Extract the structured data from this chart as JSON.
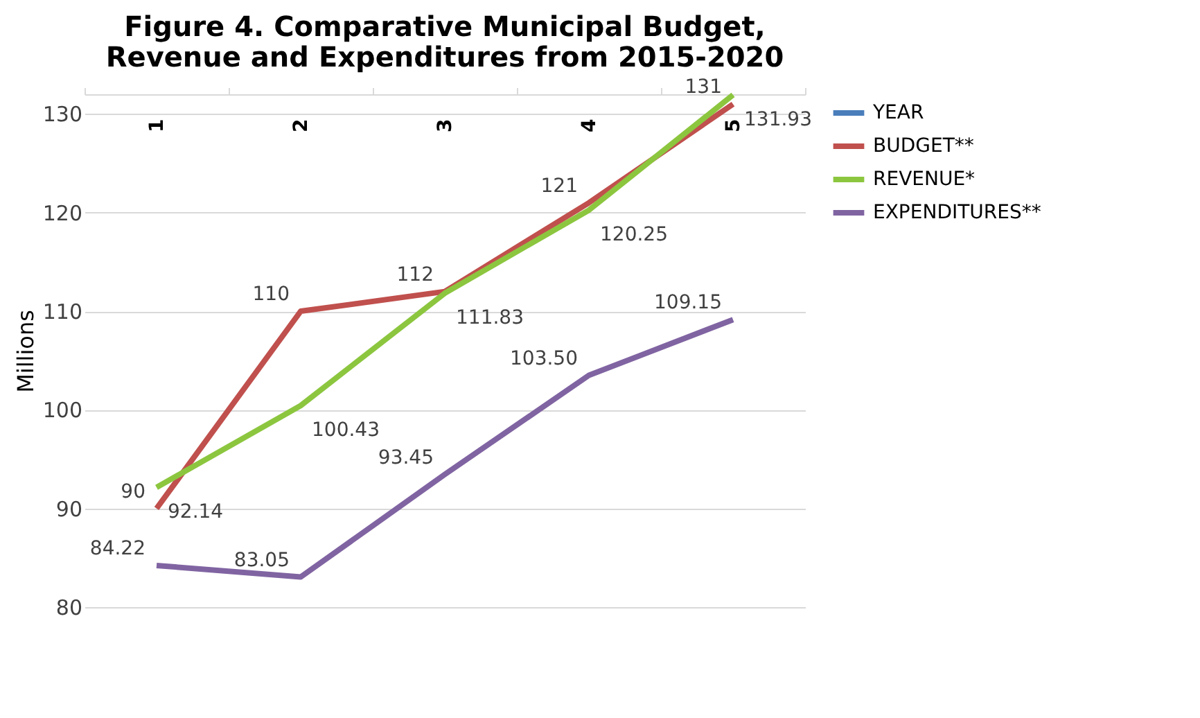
{
  "chart_data": {
    "type": "line",
    "title": [
      "Figure 4. Comparative Municipal Budget,",
      "Revenue and Expenditures from 2015-2020"
    ],
    "ylabel": "Millions",
    "categories": [
      "1",
      "2",
      "3",
      "4",
      "5"
    ],
    "series": [
      {
        "name": "YEAR",
        "color": "#4a7ebb",
        "values": [
          null,
          null,
          null,
          null,
          null
        ]
      },
      {
        "name": "BUDGET**",
        "color": "#c0504d",
        "values": [
          90,
          110,
          112,
          121,
          131
        ],
        "value_labels": [
          "90",
          "110",
          "112",
          "121",
          "131"
        ]
      },
      {
        "name": "REVENUE*",
        "color": "#8cc63f",
        "values": [
          92.14,
          100.43,
          111.83,
          120.25,
          131.93
        ],
        "value_labels": [
          "92.14",
          "100.43",
          "111.83",
          "120.25",
          "131.93"
        ]
      },
      {
        "name": "EXPENDITURES**",
        "color": "#8064a2",
        "values": [
          84.22,
          83.05,
          93.45,
          103.5,
          109.15
        ],
        "value_labels": [
          "84.22",
          "83.05",
          "93.45",
          "103.50",
          "109.15"
        ]
      }
    ],
    "ylim": [
      80,
      132
    ],
    "yticks": [
      80,
      90,
      100,
      110,
      120,
      130
    ],
    "grid": "y",
    "legend": "right",
    "marker": "none",
    "line_style": "solid"
  }
}
